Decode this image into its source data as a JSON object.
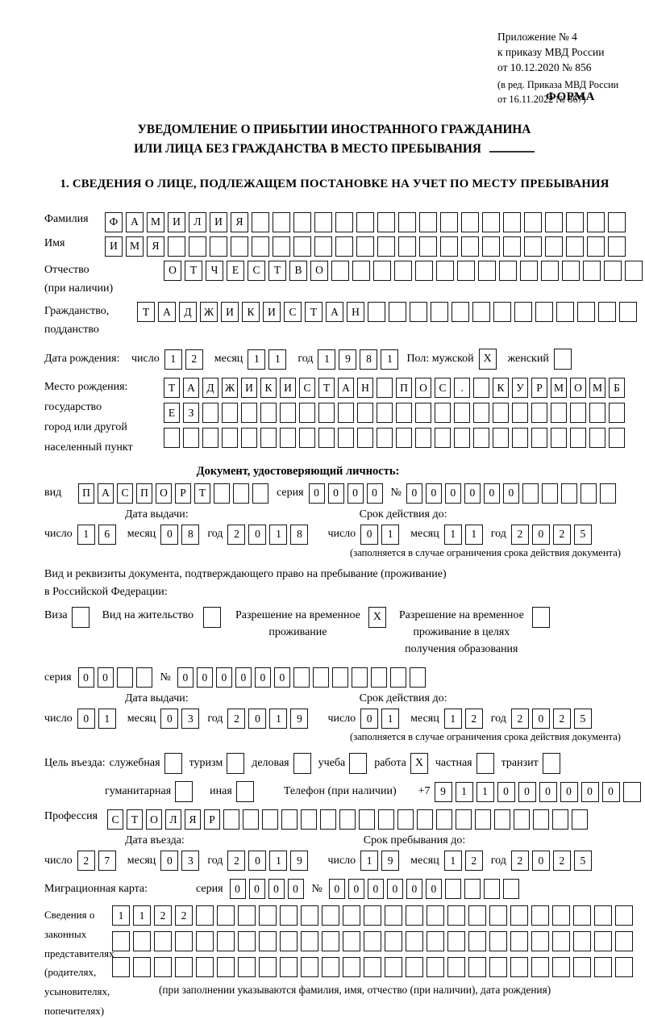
{
  "header": {
    "appendix_lines": [
      "Приложение № 4",
      "к приказу МВД России",
      "от 10.12.2020 № 856"
    ],
    "edition_lines": [
      "(в ред. Приказа МВД России",
      "от 16.11.2022 № 867)"
    ],
    "form_label": "ФОРМА"
  },
  "title": {
    "line1": "УВЕДОМЛЕНИЕ О ПРИБЫТИИ ИНОСТРАННОГО ГРАЖДАНИНА",
    "line2": "ИЛИ ЛИЦА БЕЗ ГРАЖДАНСТВА В МЕСТО ПРЕБЫВАНИЯ"
  },
  "section1": {
    "heading": "1. СВЕДЕНИЯ О ЛИЦЕ, ПОДЛЕЖАЩЕМ ПОСТАНОВКЕ НА УЧЕТ ПО МЕСТУ ПРЕБЫВАНИЯ"
  },
  "labels": {
    "surname": "Фамилия",
    "given_name": "Имя",
    "patronymic_lines": [
      "Отчество",
      "(при наличии)"
    ],
    "citizenship_lines": [
      "Гражданство,",
      "подданство"
    ],
    "birth_date": "Дата рождения:",
    "day": "число",
    "month": "месяц",
    "year": "год",
    "sex": "Пол: мужской",
    "female": "женский",
    "birthplace_lines": [
      "Место рождения:",
      "государство",
      "город или другой",
      "населенный пункт"
    ],
    "id_doc_heading": "Документ, удостоверяющий личность:",
    "id_type": "вид",
    "series": "серия",
    "number": "№",
    "issue_date": "Дата выдачи:",
    "valid_until": "Срок действия до:",
    "valid_note": "(заполняется в случае ограничения срока действия документа)",
    "resident_doc_line1": "Вид и реквизиты документа, подтверждающего право на пребывание (проживание)",
    "resident_doc_line2": "в Российской Федерации:",
    "visa": "Виза",
    "residence_permit": "Вид на жительство",
    "temp_residence_lines": [
      "Разрешение на временное",
      "проживание"
    ],
    "temp_residence_edu_lines": [
      "Разрешение на временное",
      "проживание в целях",
      "получения образования"
    ],
    "entry_purpose": "Цель въезда:",
    "purpose_official": "служебная",
    "purpose_tourism": "туризм",
    "purpose_business": "деловая",
    "purpose_study": "учеба",
    "purpose_work": "работа",
    "purpose_private": "частная",
    "purpose_transit": "транзит",
    "purpose_humanitarian": "гуманитарная",
    "purpose_other": "иная",
    "phone": "Телефон (при наличии)",
    "phone_prefix": "+7",
    "profession": "Профессия",
    "entry_date": "Дата въезда:",
    "stay_until": "Срок пребывания до:",
    "migration_card": "Миграционная карта:",
    "guardians_lines": [
      "Сведения о",
      "законных",
      "представителях",
      "(родителях,",
      "усыновителях,",
      "попечителях)"
    ],
    "guardians_note": "(при заполнении указываются фамилия, имя, отчество (при наличии), дата рождения)"
  },
  "cells": {
    "surname": {
      "value": "ФАМИЛИЯ",
      "len": 25
    },
    "given_name": {
      "value": "ИМЯ",
      "len": 25
    },
    "patronymic": {
      "value": "ОТЧЕСТВО",
      "len": 23
    },
    "citizenship": {
      "value": "ТАДЖИКИСТАН",
      "len": 24
    },
    "birth_day": {
      "value": "12",
      "len": 2
    },
    "birth_month": {
      "value": "11",
      "len": 2
    },
    "birth_year": {
      "value": "1981",
      "len": 4
    },
    "birthplace_row1": {
      "value": "ТАДЖИКИСТАН ПОС. КУРМОМБ",
      "len": 24
    },
    "birthplace_row2": {
      "value": "ЕЗ",
      "len": 24
    },
    "birthplace_row3": {
      "value": "",
      "len": 24
    },
    "id_type": {
      "value": "ПАСПОРТ",
      "len": 10
    },
    "id_series": {
      "value": "0000",
      "len": 4
    },
    "id_number": {
      "value": "000000",
      "len": 11
    },
    "id_issue_day": {
      "value": "16",
      "len": 2
    },
    "id_issue_month": {
      "value": "08",
      "len": 2
    },
    "id_issue_year": {
      "value": "2018",
      "len": 4
    },
    "id_valid_day": {
      "value": "01",
      "len": 2
    },
    "id_valid_month": {
      "value": "11",
      "len": 2
    },
    "id_valid_year": {
      "value": "2025",
      "len": 4
    },
    "res_series": {
      "value": "00",
      "len": 4
    },
    "res_number": {
      "value": "000000",
      "len": 13
    },
    "res_issue_day": {
      "value": "01",
      "len": 2
    },
    "res_issue_month": {
      "value": "03",
      "len": 2
    },
    "res_issue_year": {
      "value": "2019",
      "len": 4
    },
    "res_valid_day": {
      "value": "01",
      "len": 2
    },
    "res_valid_month": {
      "value": "12",
      "len": 2
    },
    "res_valid_year": {
      "value": "2025",
      "len": 4
    },
    "phone": {
      "value": "911000000",
      "len": 10
    },
    "profession": {
      "value": "СТОЛЯР",
      "len": 25
    },
    "entry_day": {
      "value": "27",
      "len": 2
    },
    "entry_month": {
      "value": "03",
      "len": 2
    },
    "entry_year": {
      "value": "2019",
      "len": 4
    },
    "stay_day": {
      "value": "19",
      "len": 2
    },
    "stay_month": {
      "value": "12",
      "len": 2
    },
    "stay_year": {
      "value": "2025",
      "len": 4
    },
    "mig_series": {
      "value": "0000",
      "len": 4
    },
    "mig_number": {
      "value": "000000",
      "len": 10
    },
    "guardians_row1": {
      "value": "1122",
      "len": 25
    },
    "guardians_row2": {
      "value": "",
      "len": 25
    },
    "guardians_row3": {
      "value": "",
      "len": 25
    }
  },
  "checks": {
    "male": "X",
    "female": "",
    "visa": "",
    "residence_permit": "",
    "temp_residence": "X",
    "temp_residence_edu": "",
    "official": "",
    "tourism": "",
    "business": "",
    "study": "",
    "work": "X",
    "private": "",
    "transit": "",
    "humanitarian": "",
    "other": ""
  }
}
